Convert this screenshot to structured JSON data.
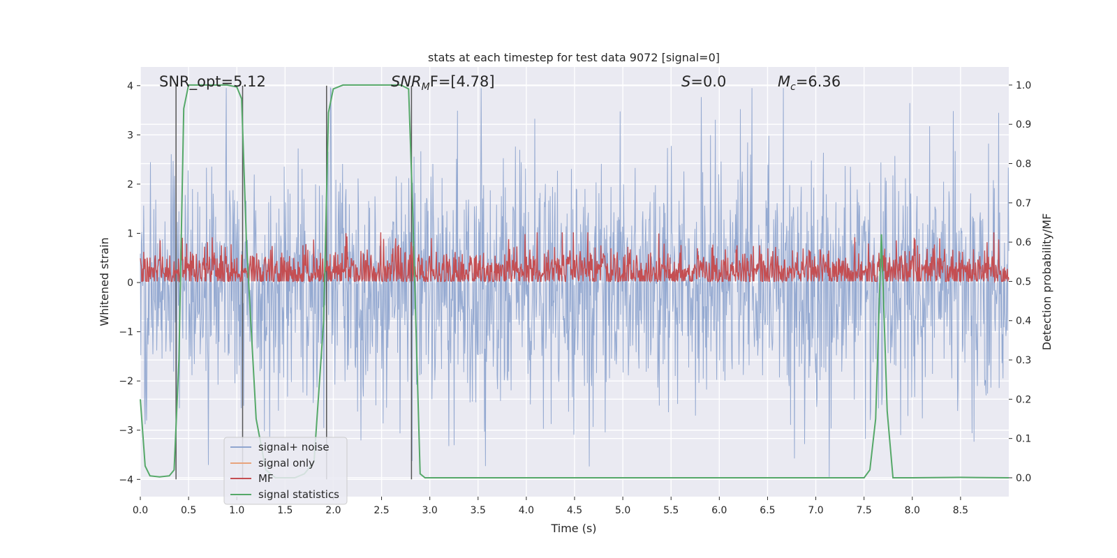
{
  "chart_data": {
    "type": "line",
    "title": "stats at each timestep for test data 9072 [signal=0]",
    "xlabel": "Time (s)",
    "ylabel": "Whitened strain",
    "ylabel_right": "Detection probability/MF",
    "xlim": [
      0,
      9.0
    ],
    "ylim": [
      -4.35,
      4.38
    ],
    "ylim_right": [
      -0.048,
      1.046
    ],
    "grid": true,
    "x_ticks": [
      0.0,
      0.5,
      1.0,
      1.5,
      2.0,
      2.5,
      3.0,
      3.5,
      4.0,
      4.5,
      5.0,
      5.5,
      6.0,
      6.5,
      7.0,
      7.5,
      8.0,
      8.5
    ],
    "x_tick_labels": [
      "0.0",
      "0.5",
      "1.0",
      "1.5",
      "2.0",
      "2.5",
      "3.0",
      "3.5",
      "4.0",
      "4.5",
      "5.0",
      "5.5",
      "6.0",
      "6.5",
      "7.0",
      "7.5",
      "8.0",
      "8.5"
    ],
    "y_ticks": [
      4,
      3,
      2,
      1,
      0,
      -1,
      -2,
      -3,
      -4
    ],
    "y_tick_labels": [
      "4",
      "3",
      "2",
      "1",
      "0",
      "−1",
      "−2",
      "−3",
      "−4"
    ],
    "y_right_ticks": [
      1.0,
      0.9,
      0.8,
      0.7,
      0.6,
      0.5,
      0.4,
      0.3,
      0.2,
      0.1,
      0.0
    ],
    "y_right_tick_labels": [
      "1.0",
      "0.9",
      "0.8",
      "0.7",
      "0.6",
      "0.5",
      "0.4",
      "0.3",
      "0.2",
      "0.1",
      "0.0"
    ],
    "annotations": {
      "snr_opt": "SNR_opt=5.12",
      "snr_mf_sym": "SNR",
      "snr_mf_sub": "M",
      "snr_mf_rest": "F=[4.78]",
      "s_sym": "S",
      "s_rest": "=0.0",
      "mc_sym": "M",
      "mc_sub": "c",
      "mc_rest": "=6.36"
    },
    "vertical_markers": [
      0.37,
      1.06,
      1.93,
      2.81
    ],
    "legend": {
      "placement": "lower-left",
      "entries": [
        "signal+ noise",
        "signal only",
        "MF",
        "signal statistics"
      ]
    },
    "series": [
      {
        "name": "signal+ noise",
        "axis": "left",
        "color": "#8fa5cf",
        "style": "dense noise, amplitude approx ±2 to ±4",
        "seed": 9072,
        "n_points": 1800
      },
      {
        "name": "signal only",
        "axis": "left",
        "color": "#e8a37c",
        "points": []
      },
      {
        "name": "MF",
        "axis": "right",
        "color": "#c44e52",
        "style": "noisy band around 0.52, peaks up to approx 0.62",
        "seed": 4780,
        "n_points": 1800
      },
      {
        "name": "signal statistics",
        "axis": "right",
        "color": "#55a868",
        "x": [
          0.0,
          0.05,
          0.1,
          0.2,
          0.3,
          0.35,
          0.4,
          0.45,
          0.5,
          0.6,
          0.7,
          0.8,
          0.9,
          1.0,
          1.05,
          1.1,
          1.2,
          1.3,
          1.4,
          1.5,
          1.6,
          1.7,
          1.8,
          1.9,
          1.95,
          2.0,
          2.1,
          2.2,
          2.5,
          2.7,
          2.78,
          2.82,
          2.9,
          2.95,
          3.0,
          3.5,
          4.0,
          5.0,
          6.0,
          7.0,
          7.5,
          7.56,
          7.62,
          7.68,
          7.74,
          7.8,
          8.0,
          8.5,
          9.0
        ],
        "y": [
          0.2,
          0.03,
          0.005,
          0.002,
          0.005,
          0.02,
          0.3,
          0.94,
          1.0,
          1.0,
          1.0,
          1.0,
          1.0,
          0.995,
          0.965,
          0.6,
          0.15,
          0.02,
          0.0,
          0.0,
          0.0,
          0.01,
          0.04,
          0.4,
          0.93,
          0.99,
          1.0,
          1.0,
          1.0,
          1.0,
          0.99,
          0.7,
          0.01,
          0.0,
          0.0,
          0.0,
          0.0,
          0.0,
          0.0,
          0.0,
          0.0,
          0.02,
          0.15,
          0.62,
          0.17,
          0.0,
          0.0,
          0.001,
          0.0
        ]
      }
    ]
  }
}
